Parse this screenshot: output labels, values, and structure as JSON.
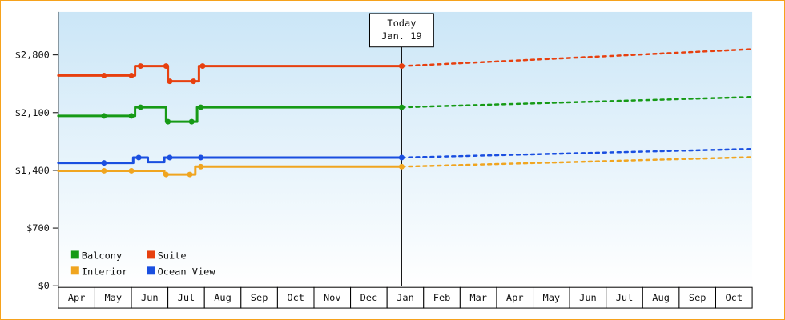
{
  "chart_data": {
    "type": "line",
    "title": "",
    "x_axis": {
      "months": [
        "Apr",
        "May",
        "Jun",
        "Jul",
        "Aug",
        "Sep",
        "Oct",
        "Nov",
        "Dec",
        "Jan",
        "Feb",
        "Mar",
        "Apr",
        "May",
        "Jun",
        "Jul",
        "Aug",
        "Sep",
        "Oct"
      ]
    },
    "y_axis": {
      "ticks": [
        0,
        700,
        1400,
        2100,
        2800
      ],
      "tick_labels": [
        "$0",
        "$700",
        "$1,400",
        "$2,100",
        "$2,800"
      ],
      "ylim": [
        0,
        3320
      ],
      "unit": "$"
    },
    "today": {
      "label_line1": "Today",
      "label_line2": "Jan. 19",
      "x": 9.4
    },
    "series": [
      {
        "name": "Interior",
        "color": "#f0a520",
        "solid": [
          [
            0,
            1395
          ],
          [
            2.9,
            1395
          ],
          [
            2.9,
            1350
          ],
          [
            3.75,
            1350
          ],
          [
            3.75,
            1445
          ],
          [
            9.4,
            1445
          ]
        ],
        "dots": [
          [
            1.25,
            1395
          ],
          [
            2.0,
            1395
          ],
          [
            2.95,
            1350
          ],
          [
            3.6,
            1350
          ],
          [
            3.9,
            1445
          ],
          [
            9.4,
            1445
          ]
        ],
        "projection": [
          [
            9.4,
            1445
          ],
          [
            19,
            1560
          ]
        ]
      },
      {
        "name": "Ocean View",
        "color": "#1a4fe0",
        "solid": [
          [
            0,
            1490
          ],
          [
            2.05,
            1490
          ],
          [
            2.05,
            1555
          ],
          [
            2.45,
            1555
          ],
          [
            2.45,
            1500
          ],
          [
            2.9,
            1500
          ],
          [
            2.9,
            1555
          ],
          [
            9.4,
            1555
          ]
        ],
        "dots": [
          [
            1.25,
            1490
          ],
          [
            2.2,
            1555
          ],
          [
            3.05,
            1555
          ],
          [
            3.9,
            1555
          ],
          [
            9.4,
            1555
          ]
        ],
        "projection": [
          [
            9.4,
            1555
          ],
          [
            19,
            1660
          ]
        ]
      },
      {
        "name": "Balcony",
        "color": "#169a16",
        "solid": [
          [
            0,
            2060
          ],
          [
            2.1,
            2060
          ],
          [
            2.1,
            2165
          ],
          [
            2.95,
            2165
          ],
          [
            2.95,
            1990
          ],
          [
            3.8,
            1990
          ],
          [
            3.8,
            2165
          ],
          [
            9.4,
            2165
          ]
        ],
        "dots": [
          [
            1.25,
            2060
          ],
          [
            2.0,
            2060
          ],
          [
            2.25,
            2165
          ],
          [
            3.0,
            1990
          ],
          [
            3.65,
            1990
          ],
          [
            3.9,
            2165
          ],
          [
            9.4,
            2165
          ]
        ],
        "projection": [
          [
            9.4,
            2165
          ],
          [
            19,
            2290
          ]
        ]
      },
      {
        "name": "Suite",
        "color": "#e7400f",
        "solid": [
          [
            0,
            2550
          ],
          [
            2.1,
            2550
          ],
          [
            2.1,
            2665
          ],
          [
            3.0,
            2665
          ],
          [
            3.0,
            2480
          ],
          [
            3.85,
            2480
          ],
          [
            3.85,
            2665
          ],
          [
            9.4,
            2665
          ]
        ],
        "dots": [
          [
            1.25,
            2550
          ],
          [
            2.0,
            2550
          ],
          [
            2.25,
            2665
          ],
          [
            2.95,
            2665
          ],
          [
            3.05,
            2480
          ],
          [
            3.7,
            2480
          ],
          [
            3.95,
            2665
          ],
          [
            9.4,
            2665
          ]
        ],
        "projection": [
          [
            9.4,
            2665
          ],
          [
            19,
            2870
          ]
        ]
      }
    ],
    "legend": {
      "rows": [
        [
          {
            "label": "Balcony",
            "color": "#169a16"
          },
          {
            "label": "Suite",
            "color": "#e7400f"
          }
        ],
        [
          {
            "label": "Interior",
            "color": "#f0a520"
          },
          {
            "label": "Ocean View",
            "color": "#1a4fe0"
          }
        ]
      ]
    },
    "colors": {
      "plot_bg_top": "#cbe6f7",
      "plot_bg_bottom": "#ffffff",
      "axis": "#000000",
      "frame_border": "#f6a21c",
      "month_cell_bg": "#ffffff"
    }
  }
}
